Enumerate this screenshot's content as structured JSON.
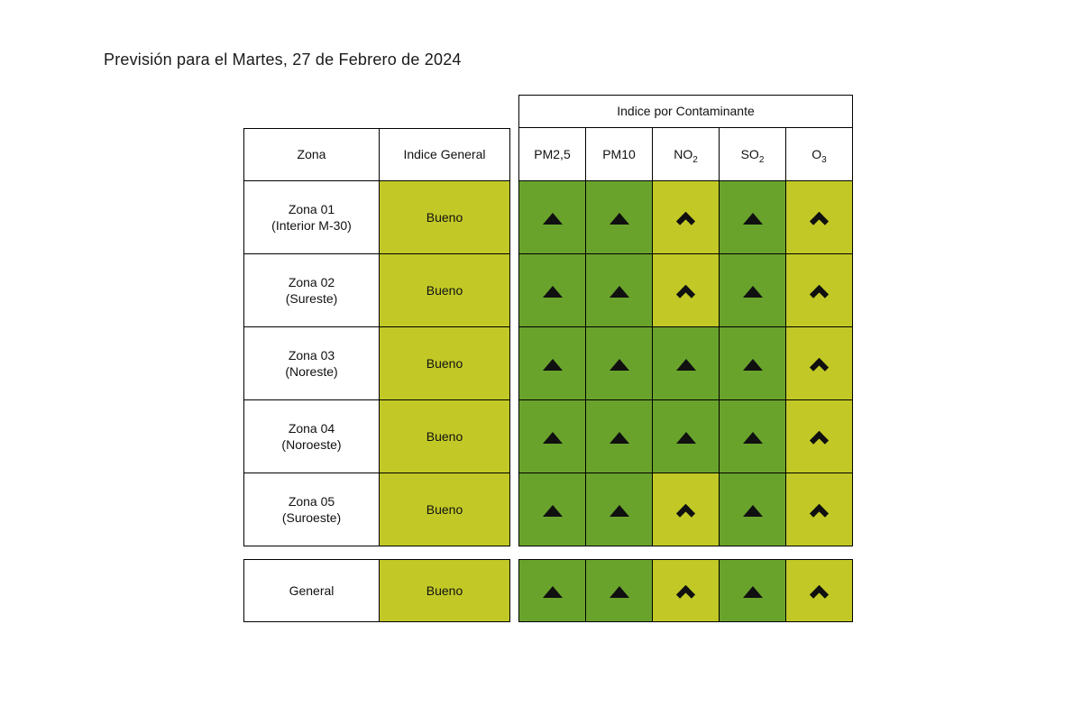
{
  "title": "Previsión para el Martes, 27 de Febrero de 2024",
  "colors": {
    "yellow_green": "#c2c926",
    "dark_green": "#6aa32c",
    "icon_black": "#101010",
    "border_black": "#000000"
  },
  "chart_data": {
    "type": "table",
    "title": "Previsión para el Martes, 27 de Febrero de 2024",
    "group_header": "Indice por Contaminante",
    "zona_header": "Zona",
    "indice_general_header": "Indice General",
    "pollutant_columns": [
      {
        "base": "PM2,5",
        "sub": ""
      },
      {
        "base": "PM10",
        "sub": ""
      },
      {
        "base": "NO",
        "sub": "2"
      },
      {
        "base": "SO",
        "sub": "2"
      },
      {
        "base": "O",
        "sub": "3"
      }
    ],
    "rows": [
      {
        "zone_lines": [
          "Zona 01",
          "(Interior M-30)"
        ],
        "index_label": "Bueno",
        "index_level": "yellow_green",
        "pollutants": [
          {
            "level": "dark_green",
            "trend_icon": "triangle-up"
          },
          {
            "level": "dark_green",
            "trend_icon": "triangle-up"
          },
          {
            "level": "yellow_green",
            "trend_icon": "chevron-up"
          },
          {
            "level": "dark_green",
            "trend_icon": "triangle-up"
          },
          {
            "level": "yellow_green",
            "trend_icon": "chevron-up"
          }
        ]
      },
      {
        "zone_lines": [
          "Zona 02",
          "(Sureste)"
        ],
        "index_label": "Bueno",
        "index_level": "yellow_green",
        "pollutants": [
          {
            "level": "dark_green",
            "trend_icon": "triangle-up"
          },
          {
            "level": "dark_green",
            "trend_icon": "triangle-up"
          },
          {
            "level": "yellow_green",
            "trend_icon": "chevron-up"
          },
          {
            "level": "dark_green",
            "trend_icon": "triangle-up"
          },
          {
            "level": "yellow_green",
            "trend_icon": "chevron-up"
          }
        ]
      },
      {
        "zone_lines": [
          "Zona 03",
          "(Noreste)"
        ],
        "index_label": "Bueno",
        "index_level": "yellow_green",
        "pollutants": [
          {
            "level": "dark_green",
            "trend_icon": "triangle-up"
          },
          {
            "level": "dark_green",
            "trend_icon": "triangle-up"
          },
          {
            "level": "dark_green",
            "trend_icon": "triangle-up"
          },
          {
            "level": "dark_green",
            "trend_icon": "triangle-up"
          },
          {
            "level": "yellow_green",
            "trend_icon": "chevron-up"
          }
        ]
      },
      {
        "zone_lines": [
          "Zona 04",
          "(Noroeste)"
        ],
        "index_label": "Bueno",
        "index_level": "yellow_green",
        "pollutants": [
          {
            "level": "dark_green",
            "trend_icon": "triangle-up"
          },
          {
            "level": "dark_green",
            "trend_icon": "triangle-up"
          },
          {
            "level": "dark_green",
            "trend_icon": "triangle-up"
          },
          {
            "level": "dark_green",
            "trend_icon": "triangle-up"
          },
          {
            "level": "yellow_green",
            "trend_icon": "chevron-up"
          }
        ]
      },
      {
        "zone_lines": [
          "Zona 05",
          "(Suroeste)"
        ],
        "index_label": "Bueno",
        "index_level": "yellow_green",
        "pollutants": [
          {
            "level": "dark_green",
            "trend_icon": "triangle-up"
          },
          {
            "level": "dark_green",
            "trend_icon": "triangle-up"
          },
          {
            "level": "yellow_green",
            "trend_icon": "chevron-up"
          },
          {
            "level": "dark_green",
            "trend_icon": "triangle-up"
          },
          {
            "level": "yellow_green",
            "trend_icon": "chevron-up"
          }
        ]
      }
    ],
    "general_row": {
      "zone_lines": [
        "General"
      ],
      "index_label": "Bueno",
      "index_level": "yellow_green",
      "pollutants": [
        {
          "level": "dark_green",
          "trend_icon": "triangle-up"
        },
        {
          "level": "dark_green",
          "trend_icon": "triangle-up"
        },
        {
          "level": "yellow_green",
          "trend_icon": "chevron-up"
        },
        {
          "level": "dark_green",
          "trend_icon": "triangle-up"
        },
        {
          "level": "yellow_green",
          "trend_icon": "chevron-up"
        }
      ]
    }
  }
}
